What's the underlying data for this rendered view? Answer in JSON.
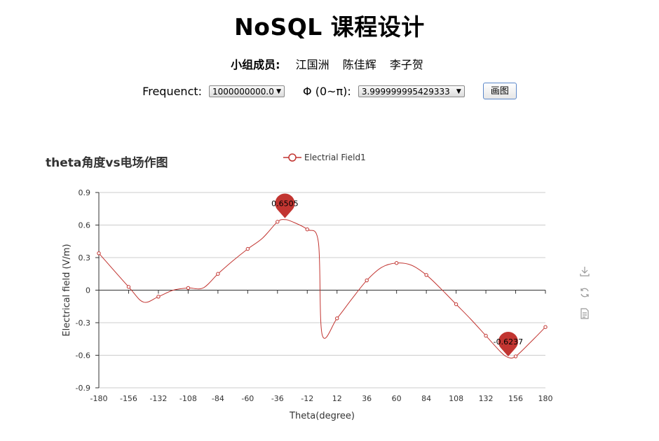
{
  "page": {
    "title": "NoSQL 课程设计",
    "members_label": "小组成员:",
    "members": [
      "江国洲",
      "陈佳辉",
      "李子贺"
    ]
  },
  "controls": {
    "frequency_label": "Frequenct:",
    "frequency_value": "1000000000.0",
    "phi_label": "Φ (0~π):",
    "phi_value": "3.999999995429333",
    "plot_button_label": "画图"
  },
  "toolbox": {
    "icons": [
      "download-icon",
      "refresh-icon",
      "data-view-icon"
    ]
  },
  "chart_data": {
    "type": "line",
    "title": "theta角度vs电场作图",
    "legend_position": "top-center",
    "xlabel": "Theta(degree)",
    "ylabel": "Electrical field (V/m)",
    "xlim": [
      -180,
      180
    ],
    "ylim": [
      -0.9,
      0.9
    ],
    "x_ticks": [
      -180,
      -156,
      -132,
      -108,
      -84,
      -60,
      -36,
      -12,
      12,
      36,
      60,
      84,
      108,
      132,
      156,
      180
    ],
    "y_ticks": [
      -0.9,
      -0.6,
      -0.3,
      0,
      0.3,
      0.6,
      0.9
    ],
    "x_tick_labels": [
      "-180",
      "-156",
      "-132",
      "-108",
      "-84",
      "-60",
      "-36",
      "-12",
      "12",
      "36",
      "60",
      "84",
      "108",
      "132",
      "156",
      "180"
    ],
    "y_tick_labels": [
      "-0.9",
      "-0.6",
      "-0.3",
      "0",
      "0.3",
      "0.6",
      "0.9"
    ],
    "grid": true,
    "color": "#c23531",
    "series": [
      {
        "name": "Electrial Field1",
        "points": [
          [
            -180,
            0.34
          ],
          [
            -156,
            0.03
          ],
          [
            -144,
            -0.11
          ],
          [
            -132,
            -0.06
          ],
          [
            -120,
            0.0
          ],
          [
            -108,
            0.02
          ],
          [
            -96,
            0.02
          ],
          [
            -84,
            0.15
          ],
          [
            -72,
            0.27
          ],
          [
            -60,
            0.38
          ],
          [
            -48,
            0.48
          ],
          [
            -36,
            0.63
          ],
          [
            -30,
            0.65
          ],
          [
            -24,
            0.63
          ],
          [
            -12,
            0.56
          ],
          [
            -3,
            0.44
          ],
          [
            0,
            -0.41
          ],
          [
            12,
            -0.26
          ],
          [
            24,
            -0.08
          ],
          [
            36,
            0.09
          ],
          [
            48,
            0.21
          ],
          [
            60,
            0.25
          ],
          [
            72,
            0.23
          ],
          [
            84,
            0.14
          ],
          [
            96,
            0.01
          ],
          [
            108,
            -0.13
          ],
          [
            120,
            -0.27
          ],
          [
            132,
            -0.42
          ],
          [
            144,
            -0.57
          ],
          [
            150,
            -0.62
          ],
          [
            156,
            -0.61
          ],
          [
            168,
            -0.48
          ],
          [
            180,
            -0.34
          ]
        ],
        "symbol_points": [
          [
            -180,
            0.34
          ],
          [
            -156,
            0.03
          ],
          [
            -132,
            -0.06
          ],
          [
            -108,
            0.02
          ],
          [
            -84,
            0.15
          ],
          [
            -60,
            0.38
          ],
          [
            -36,
            0.63
          ],
          [
            -12,
            0.56
          ],
          [
            12,
            -0.26
          ],
          [
            36,
            0.09
          ],
          [
            60,
            0.25
          ],
          [
            84,
            0.14
          ],
          [
            108,
            -0.13
          ],
          [
            132,
            -0.42
          ],
          [
            156,
            -0.61
          ],
          [
            180,
            -0.34
          ]
        ]
      }
    ],
    "mark_points": [
      {
        "label": "0.6505",
        "x": -30,
        "y": 0.6505,
        "type": "max"
      },
      {
        "label": "-0.6237",
        "x": 150,
        "y": -0.6237,
        "type": "min"
      }
    ]
  }
}
